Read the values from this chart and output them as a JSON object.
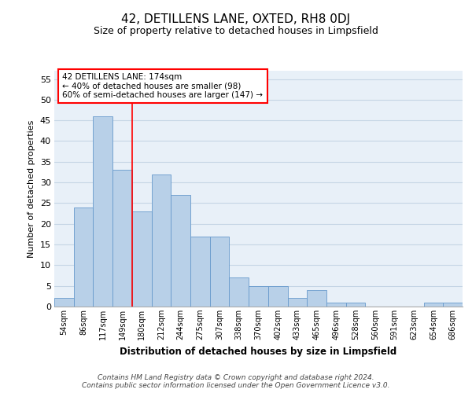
{
  "title": "42, DETILLENS LANE, OXTED, RH8 0DJ",
  "subtitle": "Size of property relative to detached houses in Limpsfield",
  "xlabel": "Distribution of detached houses by size in Limpsfield",
  "ylabel": "Number of detached properties",
  "bar_labels": [
    "54sqm",
    "86sqm",
    "117sqm",
    "149sqm",
    "180sqm",
    "212sqm",
    "244sqm",
    "275sqm",
    "307sqm",
    "338sqm",
    "370sqm",
    "402sqm",
    "433sqm",
    "465sqm",
    "496sqm",
    "528sqm",
    "560sqm",
    "591sqm",
    "623sqm",
    "654sqm",
    "686sqm"
  ],
  "bar_values": [
    2,
    24,
    46,
    33,
    23,
    32,
    27,
    17,
    17,
    7,
    5,
    5,
    2,
    4,
    1,
    1,
    0,
    0,
    0,
    1,
    1
  ],
  "bar_color": "#b8d0e8",
  "bar_edgecolor": "#6699cc",
  "ylim": [
    0,
    57
  ],
  "yticks": [
    0,
    5,
    10,
    15,
    20,
    25,
    30,
    35,
    40,
    45,
    50,
    55
  ],
  "vline_x": 3.5,
  "vline_color": "red",
  "annotation_text": "42 DETILLENS LANE: 174sqm\n← 40% of detached houses are smaller (98)\n60% of semi-detached houses are larger (147) →",
  "annotation_box_color": "white",
  "annotation_box_edgecolor": "red",
  "background_color": "#e8f0f8",
  "grid_color": "#c5d5e5",
  "footer_line1": "Contains HM Land Registry data © Crown copyright and database right 2024.",
  "footer_line2": "Contains public sector information licensed under the Open Government Licence v3.0."
}
